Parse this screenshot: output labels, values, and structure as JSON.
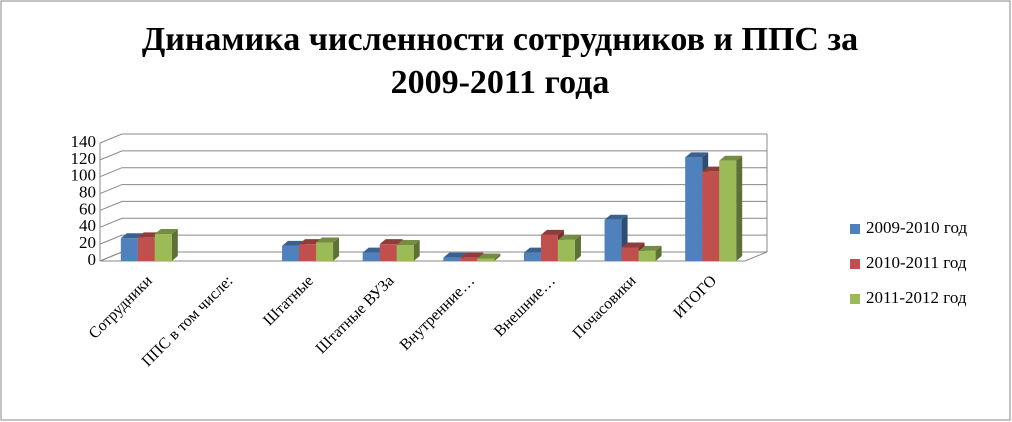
{
  "chart_data": {
    "type": "bar3d",
    "title": "Динамика численности сотрудников и ППС за",
    "subtitle": "2009-2011 года",
    "categories": [
      "Сотрудники",
      "ППС в том числе:",
      "Штатные",
      "Штатные ВУЗа",
      "Внутренние…",
      "Внешние…",
      "Почасовики",
      "ИТОГО"
    ],
    "series": [
      {
        "name": "2009-2010 год",
        "color": "#4f81bd",
        "values": [
          27,
          null,
          18,
          10,
          4,
          10,
          49,
          123
        ]
      },
      {
        "name": "2010-2011 год",
        "color": "#c0504d",
        "values": [
          28,
          null,
          20,
          20,
          4,
          31,
          16,
          106
        ]
      },
      {
        "name": "2011-2012 год",
        "color": "#9bbb59",
        "values": [
          32,
          null,
          22,
          19,
          3,
          25,
          12,
          119
        ]
      }
    ],
    "ylim": [
      0,
      140
    ],
    "yticks": [
      0,
      20,
      40,
      60,
      80,
      100,
      120,
      140
    ],
    "grid": true,
    "legend": "right"
  }
}
